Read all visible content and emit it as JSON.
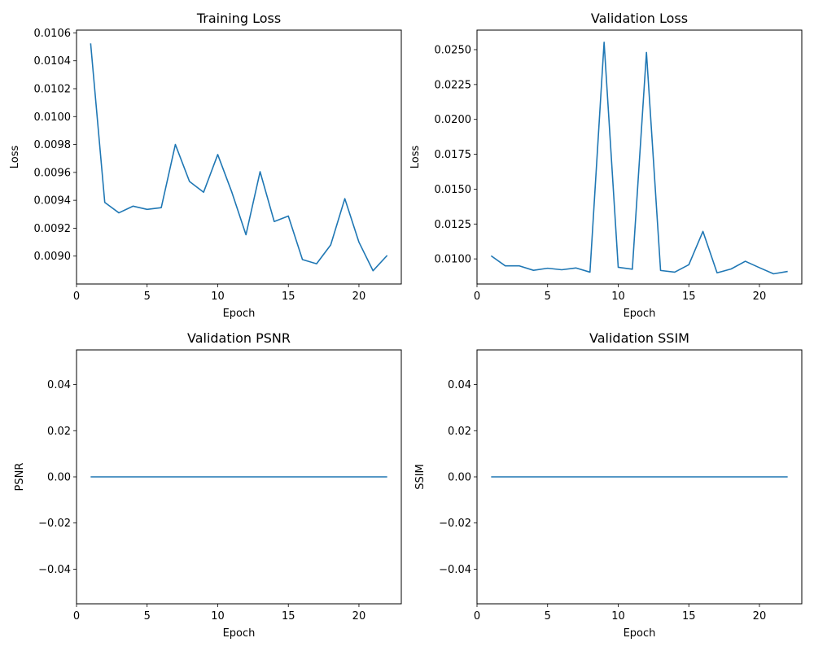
{
  "chart_data": [
    {
      "type": "line",
      "title": "Training Loss",
      "xlabel": "Epoch",
      "ylabel": "Loss",
      "xlim": [
        0,
        23
      ],
      "ylim": [
        0.0088,
        0.01062
      ],
      "xticks": [
        0,
        5,
        10,
        15,
        20
      ],
      "xtick_labels": [
        "0",
        "5",
        "10",
        "15",
        "20"
      ],
      "yticks": [
        0.009,
        0.0092,
        0.0094,
        0.0096,
        0.0098,
        0.01,
        0.0102,
        0.0104,
        0.0106
      ],
      "ytick_labels": [
        "0.0090",
        "0.0092",
        "0.0094",
        "0.0096",
        "0.0098",
        "0.0100",
        "0.0102",
        "0.0104",
        "0.0106"
      ],
      "series": [
        {
          "color": "#1f77b4",
          "x": [
            1,
            2,
            3,
            4,
            5,
            6,
            7,
            8,
            9,
            10,
            11,
            12,
            13,
            14,
            15,
            16,
            17,
            18,
            19,
            20,
            21,
            22
          ],
          "y": [
            0.010525,
            0.009385,
            0.00931,
            0.009358,
            0.009335,
            0.009347,
            0.0098,
            0.009535,
            0.009458,
            0.009728,
            0.009458,
            0.009153,
            0.009605,
            0.009248,
            0.009287,
            0.008975,
            0.008945,
            0.00908,
            0.009412,
            0.0091,
            0.008895,
            0.009005
          ]
        }
      ]
    },
    {
      "type": "line",
      "title": "Validation Loss",
      "xlabel": "Epoch",
      "ylabel": "Loss",
      "xlim": [
        0,
        23
      ],
      "ylim": [
        0.0082,
        0.0264
      ],
      "xticks": [
        0,
        5,
        10,
        15,
        20
      ],
      "xtick_labels": [
        "0",
        "5",
        "10",
        "15",
        "20"
      ],
      "yticks": [
        0.01,
        0.0125,
        0.015,
        0.0175,
        0.02,
        0.0225,
        0.025
      ],
      "ytick_labels": [
        "0.0100",
        "0.0125",
        "0.0150",
        "0.0175",
        "0.0200",
        "0.0225",
        "0.0250"
      ],
      "series": [
        {
          "color": "#1f77b4",
          "x": [
            1,
            2,
            3,
            4,
            5,
            6,
            7,
            8,
            9,
            10,
            11,
            12,
            13,
            14,
            15,
            16,
            17,
            18,
            19,
            20,
            21,
            22
          ],
          "y": [
            0.01022,
            0.0095,
            0.0095,
            0.00918,
            0.00933,
            0.00922,
            0.00935,
            0.00905,
            0.02553,
            0.0094,
            0.00926,
            0.0248,
            0.00917,
            0.00905,
            0.00958,
            0.01197,
            0.009,
            0.00928,
            0.00983,
            0.00937,
            0.00893,
            0.0091
          ]
        }
      ]
    },
    {
      "type": "line",
      "title": "Validation PSNR",
      "xlabel": "Epoch",
      "ylabel": "PSNR",
      "xlim": [
        0,
        23
      ],
      "ylim": [
        -0.055,
        0.055
      ],
      "xticks": [
        0,
        5,
        10,
        15,
        20
      ],
      "xtick_labels": [
        "0",
        "5",
        "10",
        "15",
        "20"
      ],
      "yticks": [
        -0.04,
        -0.02,
        0.0,
        0.02,
        0.04
      ],
      "ytick_labels": [
        "−0.04",
        "−0.02",
        "0.00",
        "0.02",
        "0.04"
      ],
      "series": [
        {
          "color": "#1f77b4",
          "x": [
            1,
            2,
            3,
            4,
            5,
            6,
            7,
            8,
            9,
            10,
            11,
            12,
            13,
            14,
            15,
            16,
            17,
            18,
            19,
            20,
            21,
            22
          ],
          "y": [
            0,
            0,
            0,
            0,
            0,
            0,
            0,
            0,
            0,
            0,
            0,
            0,
            0,
            0,
            0,
            0,
            0,
            0,
            0,
            0,
            0,
            0
          ]
        }
      ]
    },
    {
      "type": "line",
      "title": "Validation SSIM",
      "xlabel": "Epoch",
      "ylabel": "SSIM",
      "xlim": [
        0,
        23
      ],
      "ylim": [
        -0.055,
        0.055
      ],
      "xticks": [
        0,
        5,
        10,
        15,
        20
      ],
      "xtick_labels": [
        "0",
        "5",
        "10",
        "15",
        "20"
      ],
      "yticks": [
        -0.04,
        -0.02,
        0.0,
        0.02,
        0.04
      ],
      "ytick_labels": [
        "−0.04",
        "−0.02",
        "0.00",
        "0.02",
        "0.04"
      ],
      "series": [
        {
          "color": "#1f77b4",
          "x": [
            1,
            2,
            3,
            4,
            5,
            6,
            7,
            8,
            9,
            10,
            11,
            12,
            13,
            14,
            15,
            16,
            17,
            18,
            19,
            20,
            21,
            22
          ],
          "y": [
            0,
            0,
            0,
            0,
            0,
            0,
            0,
            0,
            0,
            0,
            0,
            0,
            0,
            0,
            0,
            0,
            0,
            0,
            0,
            0,
            0,
            0
          ]
        }
      ]
    }
  ]
}
